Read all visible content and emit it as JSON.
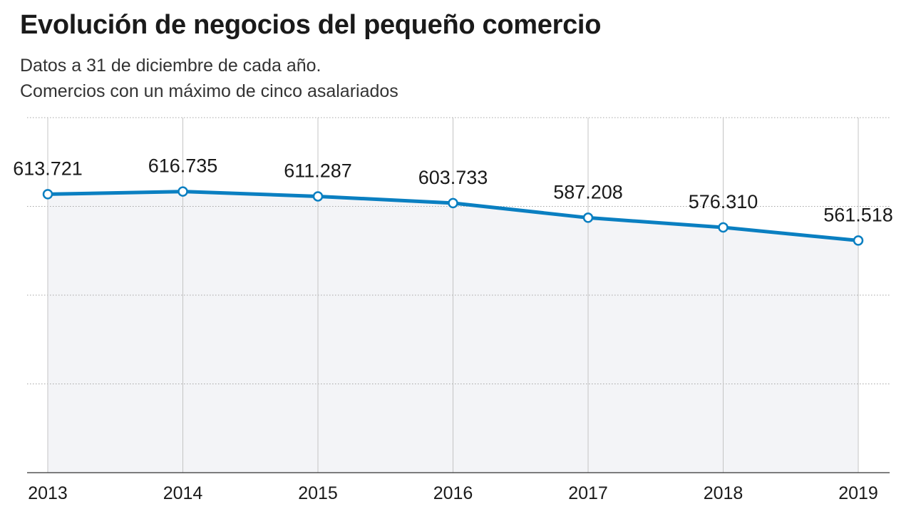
{
  "title": "Evolución de negocios del pequeño comercio",
  "subtitle_lines": [
    "Datos a 31 de diciembre de cada año.",
    "Comercios con un máximo de cinco asalariados"
  ],
  "colors": {
    "line": "#0a7fc1",
    "area_fill": "#f3f4f7",
    "grid": "#a6a6a6",
    "axis": "#333333",
    "text": "#1a1a1a"
  },
  "chart_data": {
    "type": "line",
    "title": "Evolución de negocios del pequeño comercio",
    "subtitle": "Datos a 31 de diciembre de cada año. Comercios con un máximo de cinco asalariados",
    "xlabel": "",
    "ylabel": "",
    "x": [
      "2013",
      "2014",
      "2015",
      "2016",
      "2017",
      "2018",
      "2019"
    ],
    "series": [
      {
        "values": [
          613721,
          616735,
          611287,
          603733,
          587208,
          576310,
          561518
        ],
        "labels": [
          "613.721",
          "616.735",
          "611.287",
          "603.733",
          "587.208",
          "576.310",
          "561.518"
        ]
      }
    ],
    "ylim": [
      300000,
      700000
    ],
    "y_gridlines": [
      400000,
      500000,
      600000,
      700000
    ],
    "grid": true,
    "area_fill": true,
    "legend": "none"
  }
}
